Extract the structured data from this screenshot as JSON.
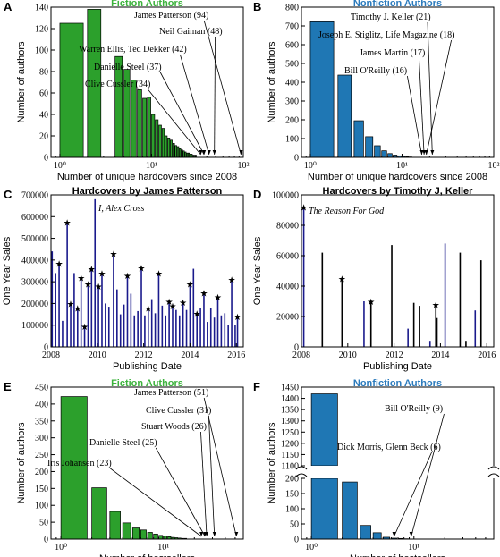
{
  "colors": {
    "fiction": "#2ca02c",
    "nonfiction": "#1f77b4",
    "patterson": "#1a1a8c",
    "accent_green": "#3cb33c",
    "accent_blue": "#2b7bbd"
  },
  "chart_data": [
    {
      "panel": "A",
      "type": "bar",
      "title": "Fiction Authors",
      "xlabel": "Number of unique hardcovers since 2008",
      "ylabel": "Number of authors",
      "xscale": "log",
      "xlim": [
        0.8,
        100
      ],
      "ylim": [
        0,
        140
      ],
      "xticks": [
        1,
        10,
        100
      ],
      "xtick_labels": [
        "10⁰",
        "10¹",
        "10²"
      ],
      "yticks": [
        0,
        20,
        40,
        60,
        80,
        100,
        120,
        140
      ],
      "x": [
        1,
        2,
        3,
        4,
        5,
        6,
        7,
        8,
        9,
        10,
        11,
        12,
        13,
        14,
        15,
        16,
        17,
        18,
        19,
        20,
        21,
        22,
        23,
        24,
        25,
        26,
        27,
        28,
        29,
        30
      ],
      "values": [
        125,
        138,
        0,
        94,
        82,
        72,
        63,
        55,
        56,
        40,
        35,
        30,
        27,
        20,
        18,
        16,
        13,
        11,
        10,
        8,
        7,
        6,
        5,
        4,
        4,
        3,
        3,
        2,
        2,
        2
      ],
      "annotations": [
        {
          "text": "James Patterson (94)",
          "x": 94
        },
        {
          "text": "Neil Gaiman (48)",
          "x": 48
        },
        {
          "text": "Warren Ellis, Ted Dekker (42)",
          "x": 42
        },
        {
          "text": "Danielle Steel (37)",
          "x": 37
        },
        {
          "text": "Clive Cussler (34)",
          "x": 34
        }
      ]
    },
    {
      "panel": "B",
      "type": "bar",
      "title": "Nonfiction Authors",
      "xlabel": "Number of unique hardcovers since 2008",
      "ylabel": "Number of authors",
      "xscale": "log",
      "xlim": [
        0.8,
        100
      ],
      "ylim": [
        0,
        800
      ],
      "xticks": [
        1,
        10,
        100
      ],
      "xtick_labels": [
        "10⁰",
        "10¹",
        "10²"
      ],
      "yticks": [
        0,
        100,
        200,
        300,
        400,
        500,
        600,
        700,
        800
      ],
      "x": [
        1,
        2,
        3,
        4,
        5,
        6,
        7,
        8,
        9,
        10,
        11,
        12
      ],
      "values": [
        722,
        438,
        195,
        110,
        62,
        35,
        20,
        12,
        8,
        5,
        3,
        2
      ],
      "annotations": [
        {
          "text": "Timothy J. Keller (21)",
          "x": 21
        },
        {
          "text": "Joseph E. Stiglitz, Life Magazine (18)",
          "x": 18
        },
        {
          "text": "James Martin (17)",
          "x": 17
        },
        {
          "text": "Bill O'Reilly (16)",
          "x": 16
        }
      ]
    },
    {
      "panel": "C",
      "type": "bar",
      "title": "Hardcovers by James Patterson",
      "xlabel": "Publishing Date",
      "ylabel": "One Year Sales",
      "xlim": [
        2008,
        2016.3
      ],
      "ylim": [
        0,
        700000
      ],
      "xticks": [
        2008,
        2010,
        2012,
        2014,
        2016
      ],
      "yticks": [
        0,
        100000,
        200000,
        300000,
        400000,
        500000,
        600000,
        700000
      ],
      "ytick_labels": [
        "0",
        "100000",
        "200000",
        "300000",
        "400000",
        "500000",
        "600000",
        "700000"
      ],
      "x": [
        2008.05,
        2008.2,
        2008.35,
        2008.5,
        2008.7,
        2008.85,
        2009.0,
        2009.15,
        2009.3,
        2009.45,
        2009.6,
        2009.75,
        2009.9,
        2010.05,
        2010.2,
        2010.35,
        2010.5,
        2010.7,
        2010.85,
        2011.0,
        2011.15,
        2011.3,
        2011.45,
        2011.6,
        2011.75,
        2011.9,
        2012.05,
        2012.2,
        2012.35,
        2012.5,
        2012.65,
        2012.8,
        2012.95,
        2013.1,
        2013.25,
        2013.4,
        2013.55,
        2013.7,
        2013.85,
        2014.0,
        2014.15,
        2014.3,
        2014.45,
        2014.6,
        2014.75,
        2014.9,
        2015.05,
        2015.2,
        2015.35,
        2015.5,
        2015.65,
        2015.8,
        2015.95,
        2016.05
      ],
      "values": [
        440000,
        340000,
        385000,
        120000,
        575000,
        200000,
        340000,
        180000,
        320000,
        95000,
        290000,
        360000,
        680000,
        280000,
        340000,
        200000,
        185000,
        430000,
        265000,
        150000,
        195000,
        330000,
        245000,
        145000,
        165000,
        365000,
        145000,
        180000,
        220000,
        155000,
        340000,
        190000,
        145000,
        210000,
        190000,
        170000,
        145000,
        205000,
        170000,
        290000,
        360000,
        155000,
        180000,
        250000,
        115000,
        180000,
        135000,
        230000,
        145000,
        155000,
        100000,
        310000,
        100000,
        140000
      ],
      "starred": [
        2008.35,
        2008.7,
        2008.85,
        2009.15,
        2009.3,
        2009.45,
        2009.6,
        2009.75,
        2010.05,
        2010.2,
        2010.7,
        2011.3,
        2011.9,
        2012.2,
        2012.65,
        2013.1,
        2013.25,
        2013.7,
        2014.0,
        2014.3,
        2014.6,
        2015.2,
        2015.8,
        2016.05
      ],
      "annotations": [
        {
          "text": "I, Alex Cross",
          "x": 2009.9
        }
      ]
    },
    {
      "panel": "D",
      "type": "bar",
      "title": "Hardcovers by Timothy J, Keller",
      "xlabel": "Publishing Date",
      "ylabel": "One Year Sales",
      "xlim": [
        2008,
        2016.3
      ],
      "ylim": [
        0,
        100000
      ],
      "xticks": [
        2008,
        2010,
        2012,
        2014,
        2016
      ],
      "yticks": [
        0,
        20000,
        40000,
        60000,
        80000,
        100000
      ],
      "ytick_labels": [
        "0",
        "20000",
        "40000",
        "60000",
        "80000",
        "100000"
      ],
      "x": [
        2008.1,
        2008.9,
        2009.75,
        2010.7,
        2011.0,
        2011.9,
        2012.6,
        2012.85,
        2013.1,
        2013.55,
        2013.8,
        2013.85,
        2014.2,
        2014.85,
        2015.1,
        2015.5,
        2015.75
      ],
      "values": [
        92000,
        62000,
        45000,
        30000,
        30000,
        67000,
        12000,
        29000,
        27000,
        4000,
        28000,
        19000,
        68000,
        62000,
        4000,
        24000,
        57000
      ],
      "starred": [
        2008.1,
        2009.75,
        2011.0,
        2013.8
      ],
      "annotations": [
        {
          "text": "The Reason For God",
          "x": 2008.1
        }
      ]
    },
    {
      "panel": "E",
      "type": "bar",
      "title": "Fiction Authors",
      "xlabel": "Number of bestsellers",
      "ylabel": "Number of authors",
      "xscale": "log",
      "xlim": [
        0.8,
        60
      ],
      "ylim": [
        0,
        450
      ],
      "xticks": [
        1,
        10
      ],
      "xtick_labels": [
        "10⁰",
        "10¹"
      ],
      "yticks": [
        0,
        50,
        100,
        150,
        200,
        250,
        300,
        350,
        400,
        450
      ],
      "x": [
        1,
        2,
        3,
        4,
        5,
        6,
        7,
        8,
        9,
        10,
        11,
        12,
        13,
        14,
        15,
        16
      ],
      "values": [
        422,
        152,
        82,
        48,
        33,
        27,
        20,
        15,
        11,
        9,
        7,
        5,
        4,
        3,
        2,
        2
      ],
      "annotations": [
        {
          "text": "James Patterson (51)",
          "x": 51
        },
        {
          "text": "Clive Cussler (31)",
          "x": 31
        },
        {
          "text": "Stuart Woods (26)",
          "x": 26
        },
        {
          "text": "Danielle Steel (25)",
          "x": 25
        },
        {
          "text": "Iris Johansen (23)",
          "x": 23
        }
      ]
    },
    {
      "panel": "F",
      "type": "bar",
      "title": "Nonfiction Authors",
      "xlabel": "Number of bestsellers",
      "ylabel": "Number of authors",
      "xscale": "log",
      "xlim": [
        0.8,
        60
      ],
      "ylim": [
        0,
        1450
      ],
      "axis_break": [
        200,
        1100
      ],
      "xticks": [
        1,
        10
      ],
      "xtick_labels": [
        "10⁰",
        "10¹"
      ],
      "yticks": [
        0,
        50,
        100,
        150,
        200,
        1100,
        1150,
        1200,
        1250,
        1300,
        1350,
        1400,
        1450
      ],
      "x": [
        1,
        2,
        3,
        4,
        5,
        6,
        7,
        8
      ],
      "values": [
        1420,
        188,
        45,
        21,
        6,
        3,
        2,
        1
      ],
      "annotations": [
        {
          "text": "Bill O'Reilly (9)",
          "x": 9
        },
        {
          "text": "Dick Morris, Glenn Beck (6)",
          "x": 6
        }
      ]
    }
  ]
}
